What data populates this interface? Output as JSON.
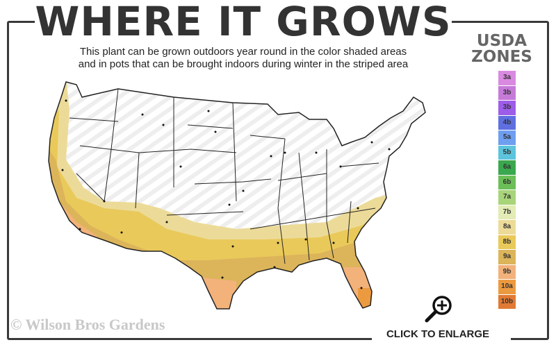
{
  "header": {
    "title": "WHERE IT GROWS",
    "subtitle_line1": "This plant can be grown outdoors year round in the color shaded areas",
    "subtitle_line2": "and in pots that can be brought indoors during winter in the striped area"
  },
  "legend": {
    "title_line1": "USDA",
    "title_line2": "ZONES",
    "zones": [
      {
        "label": "3a",
        "color": "#d98ae0"
      },
      {
        "label": "3b",
        "color": "#c67ad8"
      },
      {
        "label": "3b",
        "color": "#9d5de8"
      },
      {
        "label": "4b",
        "color": "#5f6fe0"
      },
      {
        "label": "5a",
        "color": "#6e9ef0"
      },
      {
        "label": "5b",
        "color": "#5cc4dc"
      },
      {
        "label": "6a",
        "color": "#3aa84e"
      },
      {
        "label": "6b",
        "color": "#6cbf58"
      },
      {
        "label": "7a",
        "color": "#a8d47a"
      },
      {
        "label": "7b",
        "color": "#e2ecb4"
      },
      {
        "label": "8a",
        "color": "#ecdb98"
      },
      {
        "label": "8b",
        "color": "#e9c95a"
      },
      {
        "label": "9a",
        "color": "#dcb45a"
      },
      {
        "label": "9b",
        "color": "#f2b27a"
      },
      {
        "label": "10a",
        "color": "#ec9a40"
      },
      {
        "label": "10b",
        "color": "#e07a34"
      }
    ]
  },
  "footer": {
    "watermark": "© Wilson Bros Gardens",
    "enlarge_label": "CLICK TO ENLARGE",
    "enlarge_icon": "magnifier-plus-icon"
  }
}
